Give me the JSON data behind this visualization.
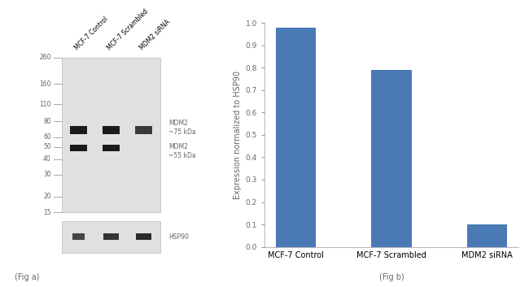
{
  "fig_width": 6.5,
  "fig_height": 3.53,
  "dpi": 100,
  "bar_categories": [
    "MCF-7 Control",
    "MCF-7 Scrambled",
    "MDM2 siRNA"
  ],
  "bar_values": [
    0.98,
    0.79,
    0.1
  ],
  "bar_color": "#4a7ab5",
  "ylabel": "Expression normalized to HSP90",
  "ylim": [
    0,
    1.0
  ],
  "yticks": [
    0,
    0.1,
    0.2,
    0.3,
    0.4,
    0.5,
    0.6,
    0.7,
    0.8,
    0.9,
    1
  ],
  "fig_a_label": "(Fig a)",
  "fig_b_label": "(Fig b)",
  "wb_bg_color": "#e0e0e0",
  "mw_markers": [
    260,
    160,
    110,
    80,
    60,
    50,
    40,
    30,
    20,
    15
  ],
  "lane_labels": [
    "MCF-7 Control",
    "MCF-7 Scrambled",
    "MDM2 siRNA"
  ],
  "band1_label": "MDM2\n~75 kDa",
  "band2_label": "MDM2\n~55 kDa",
  "hsp90_label": "HSP90",
  "label_color": "#666666",
  "tick_color": "#666666"
}
